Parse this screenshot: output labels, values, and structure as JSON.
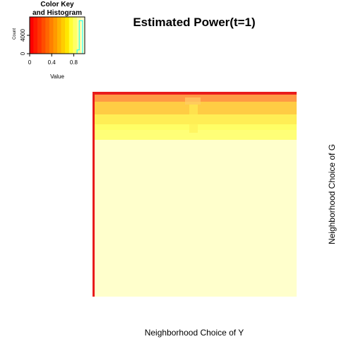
{
  "chart_data": [
    {
      "type": "heatmap",
      "title": "Estimated Power(t=1)",
      "xlabel": "Neighborhood Choice of Y",
      "ylabel": "Neighborhood Choice of G",
      "value_range": [
        0,
        1
      ],
      "colors": [
        "#ff0000",
        "#ffff66",
        "#ffffcc"
      ],
      "rows": [
        {
          "value": 0.02,
          "color": "#ee2222"
        },
        {
          "value": 0.45,
          "color": "#ff9944"
        },
        {
          "value": 0.65,
          "color": "#ffcc44"
        },
        {
          "value": 0.8,
          "color": "#ffee55"
        },
        {
          "value": 0.85,
          "color": "#ffff66"
        },
        {
          "value": 0.88,
          "color": "#ffff77"
        },
        {
          "value": 0.95,
          "color": "#ffffcc"
        }
      ],
      "first_column_value": 0.02
    },
    {
      "type": "bar",
      "title": "Color Key\nand Histogram",
      "title_lines": [
        "Color Key",
        "and Histogram"
      ],
      "xlabel": "Value",
      "ylabel": "Count",
      "x_ticks": [
        "0",
        "0.4",
        "0.8"
      ],
      "y_ticks": [
        "0",
        "4000"
      ],
      "xlim": [
        0,
        1
      ],
      "ylim": [
        0,
        8000
      ],
      "key_colors": [
        "#ff0000",
        "#ff1a00",
        "#ff3300",
        "#ff4d00",
        "#ff6600",
        "#ff8000",
        "#ff9900",
        "#ffb300",
        "#ffcc00",
        "#ffe600",
        "#ffff33",
        "#ffff66",
        "#ffff99",
        "#ffffcc"
      ]
    }
  ]
}
